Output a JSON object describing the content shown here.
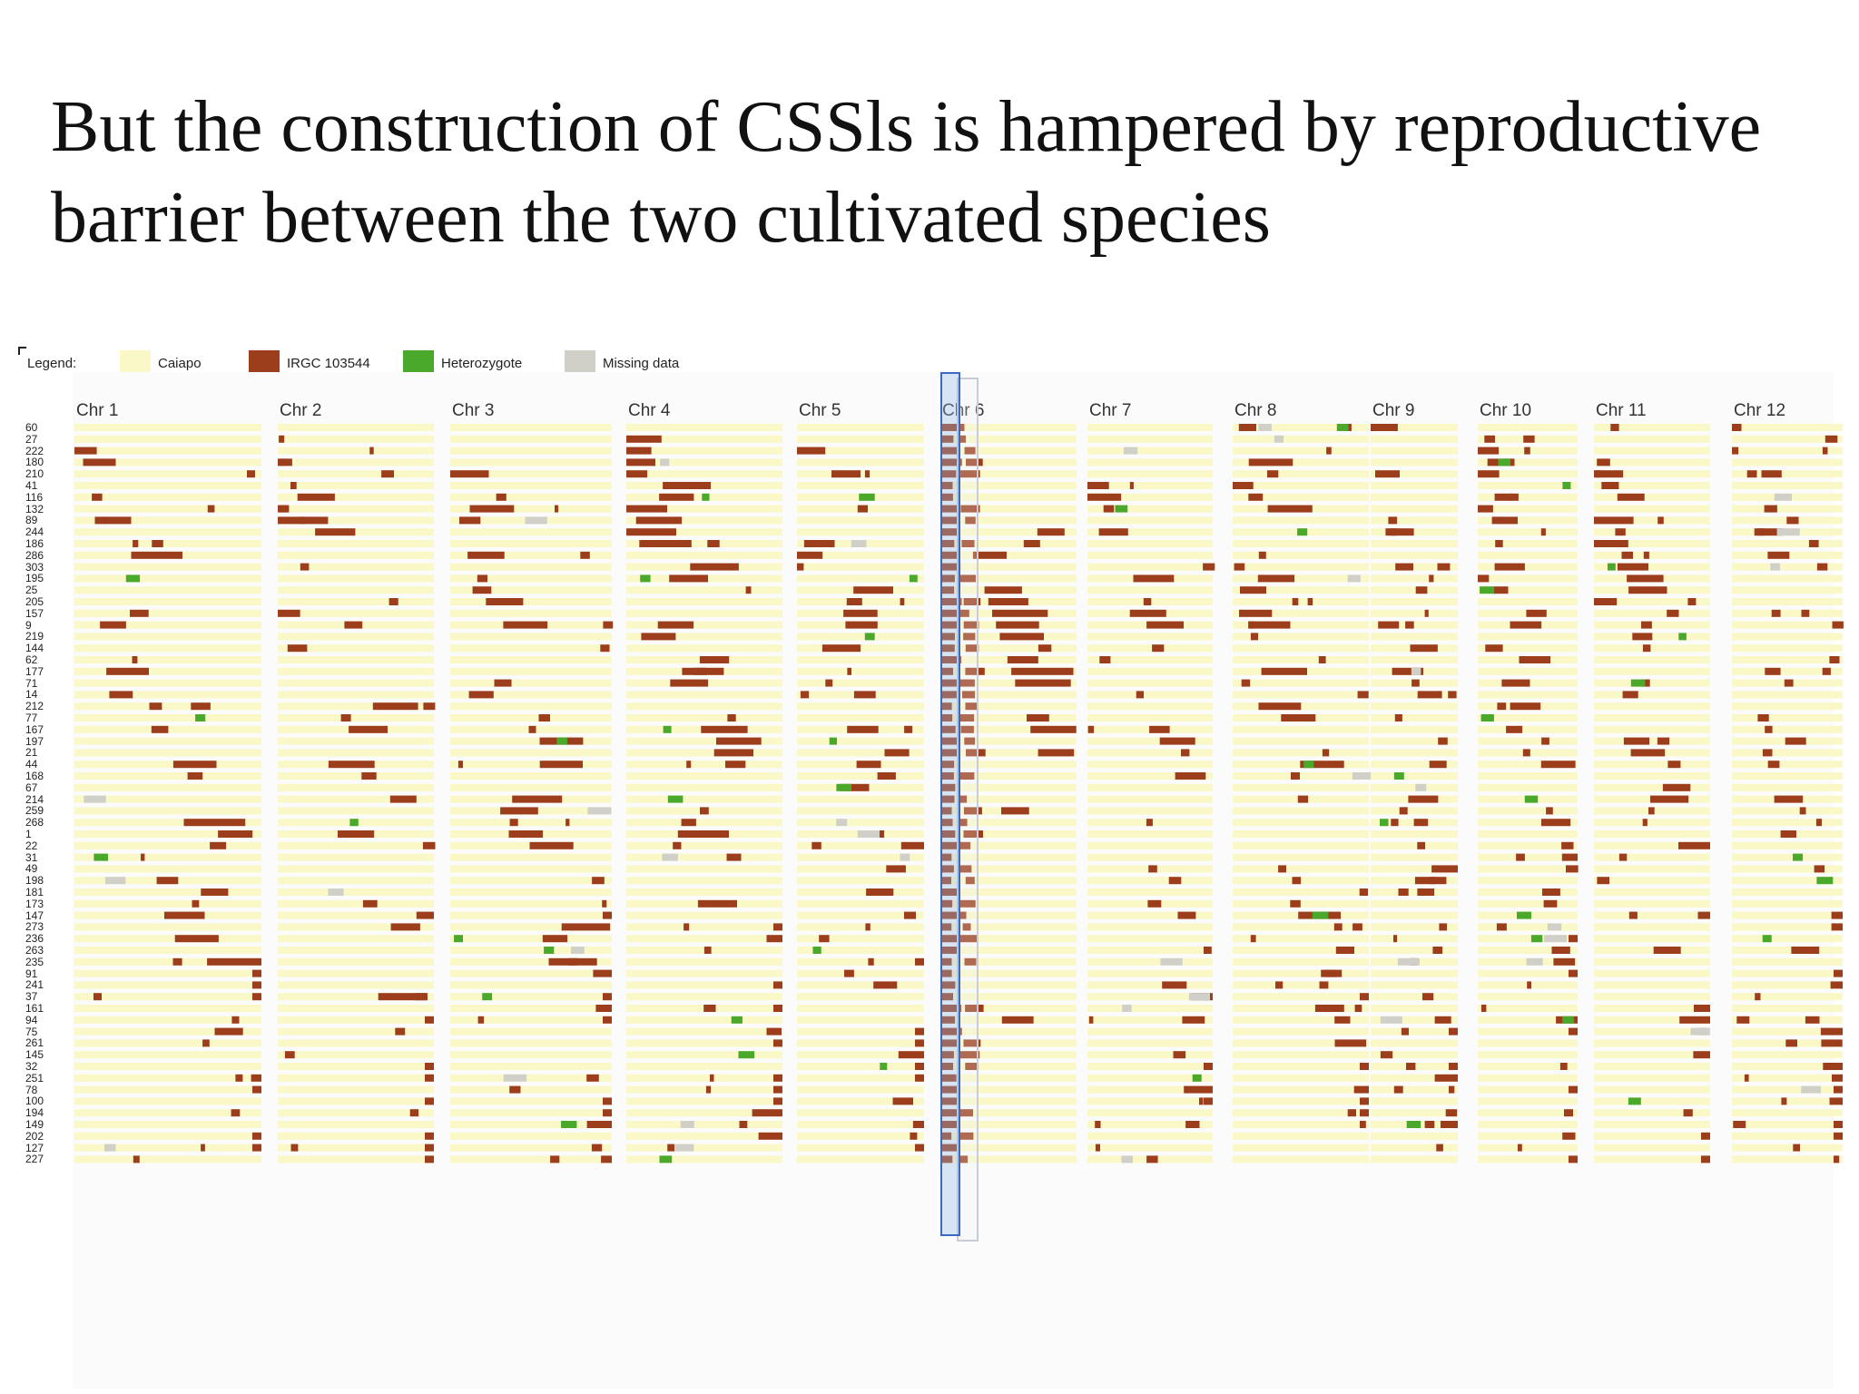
{
  "slide": {
    "title_line1": "But the construction of CSSls is hampered by reproductive",
    "title_line2": "barrier between the two cultivated species"
  },
  "legend": {
    "label": "Legend:",
    "items": [
      {
        "label": "Caiapo",
        "color": "#fbf8c8"
      },
      {
        "label": "IRGC 103544",
        "color": "#9c3e1c"
      },
      {
        "label": "Heterozygote",
        "color": "#4aa82a"
      },
      {
        "label": "Missing data",
        "color": "#d0d0c8"
      }
    ]
  },
  "chromosomes": [
    "Chr 1",
    "Chr 2",
    "Chr 3",
    "Chr 4",
    "Chr 5",
    "Chr 6",
    "Chr 7",
    "Chr 8",
    "Chr 9",
    "Chr 10",
    "Chr 11",
    "Chr 12"
  ],
  "line_ids": [
    "60",
    "27",
    "222",
    "180",
    "210",
    "41",
    "116",
    "132",
    "89",
    "244",
    "186",
    "286",
    "303",
    "195",
    "25",
    "205",
    "157",
    "9",
    "219",
    "144",
    "62",
    "177",
    "71",
    "14",
    "212",
    "77",
    "167",
    "197",
    "21",
    "44",
    "168",
    "67",
    "214",
    "259",
    "268",
    "1",
    "22",
    "31",
    "49",
    "198",
    "181",
    "173",
    "147",
    "273",
    "236",
    "263",
    "235",
    "91",
    "241",
    "37",
    "161",
    "94",
    "75",
    "261",
    "145",
    "32",
    "251",
    "78",
    "100",
    "194",
    "149",
    "202",
    "127",
    "227"
  ],
  "highlighted_chromosome": "Chr 6",
  "genotype_codes": {
    "caiapo": "#fbf8c8",
    "irgc": "#9c3e1c",
    "het": "#4aa82a",
    "missing": "#d0d0c8"
  }
}
